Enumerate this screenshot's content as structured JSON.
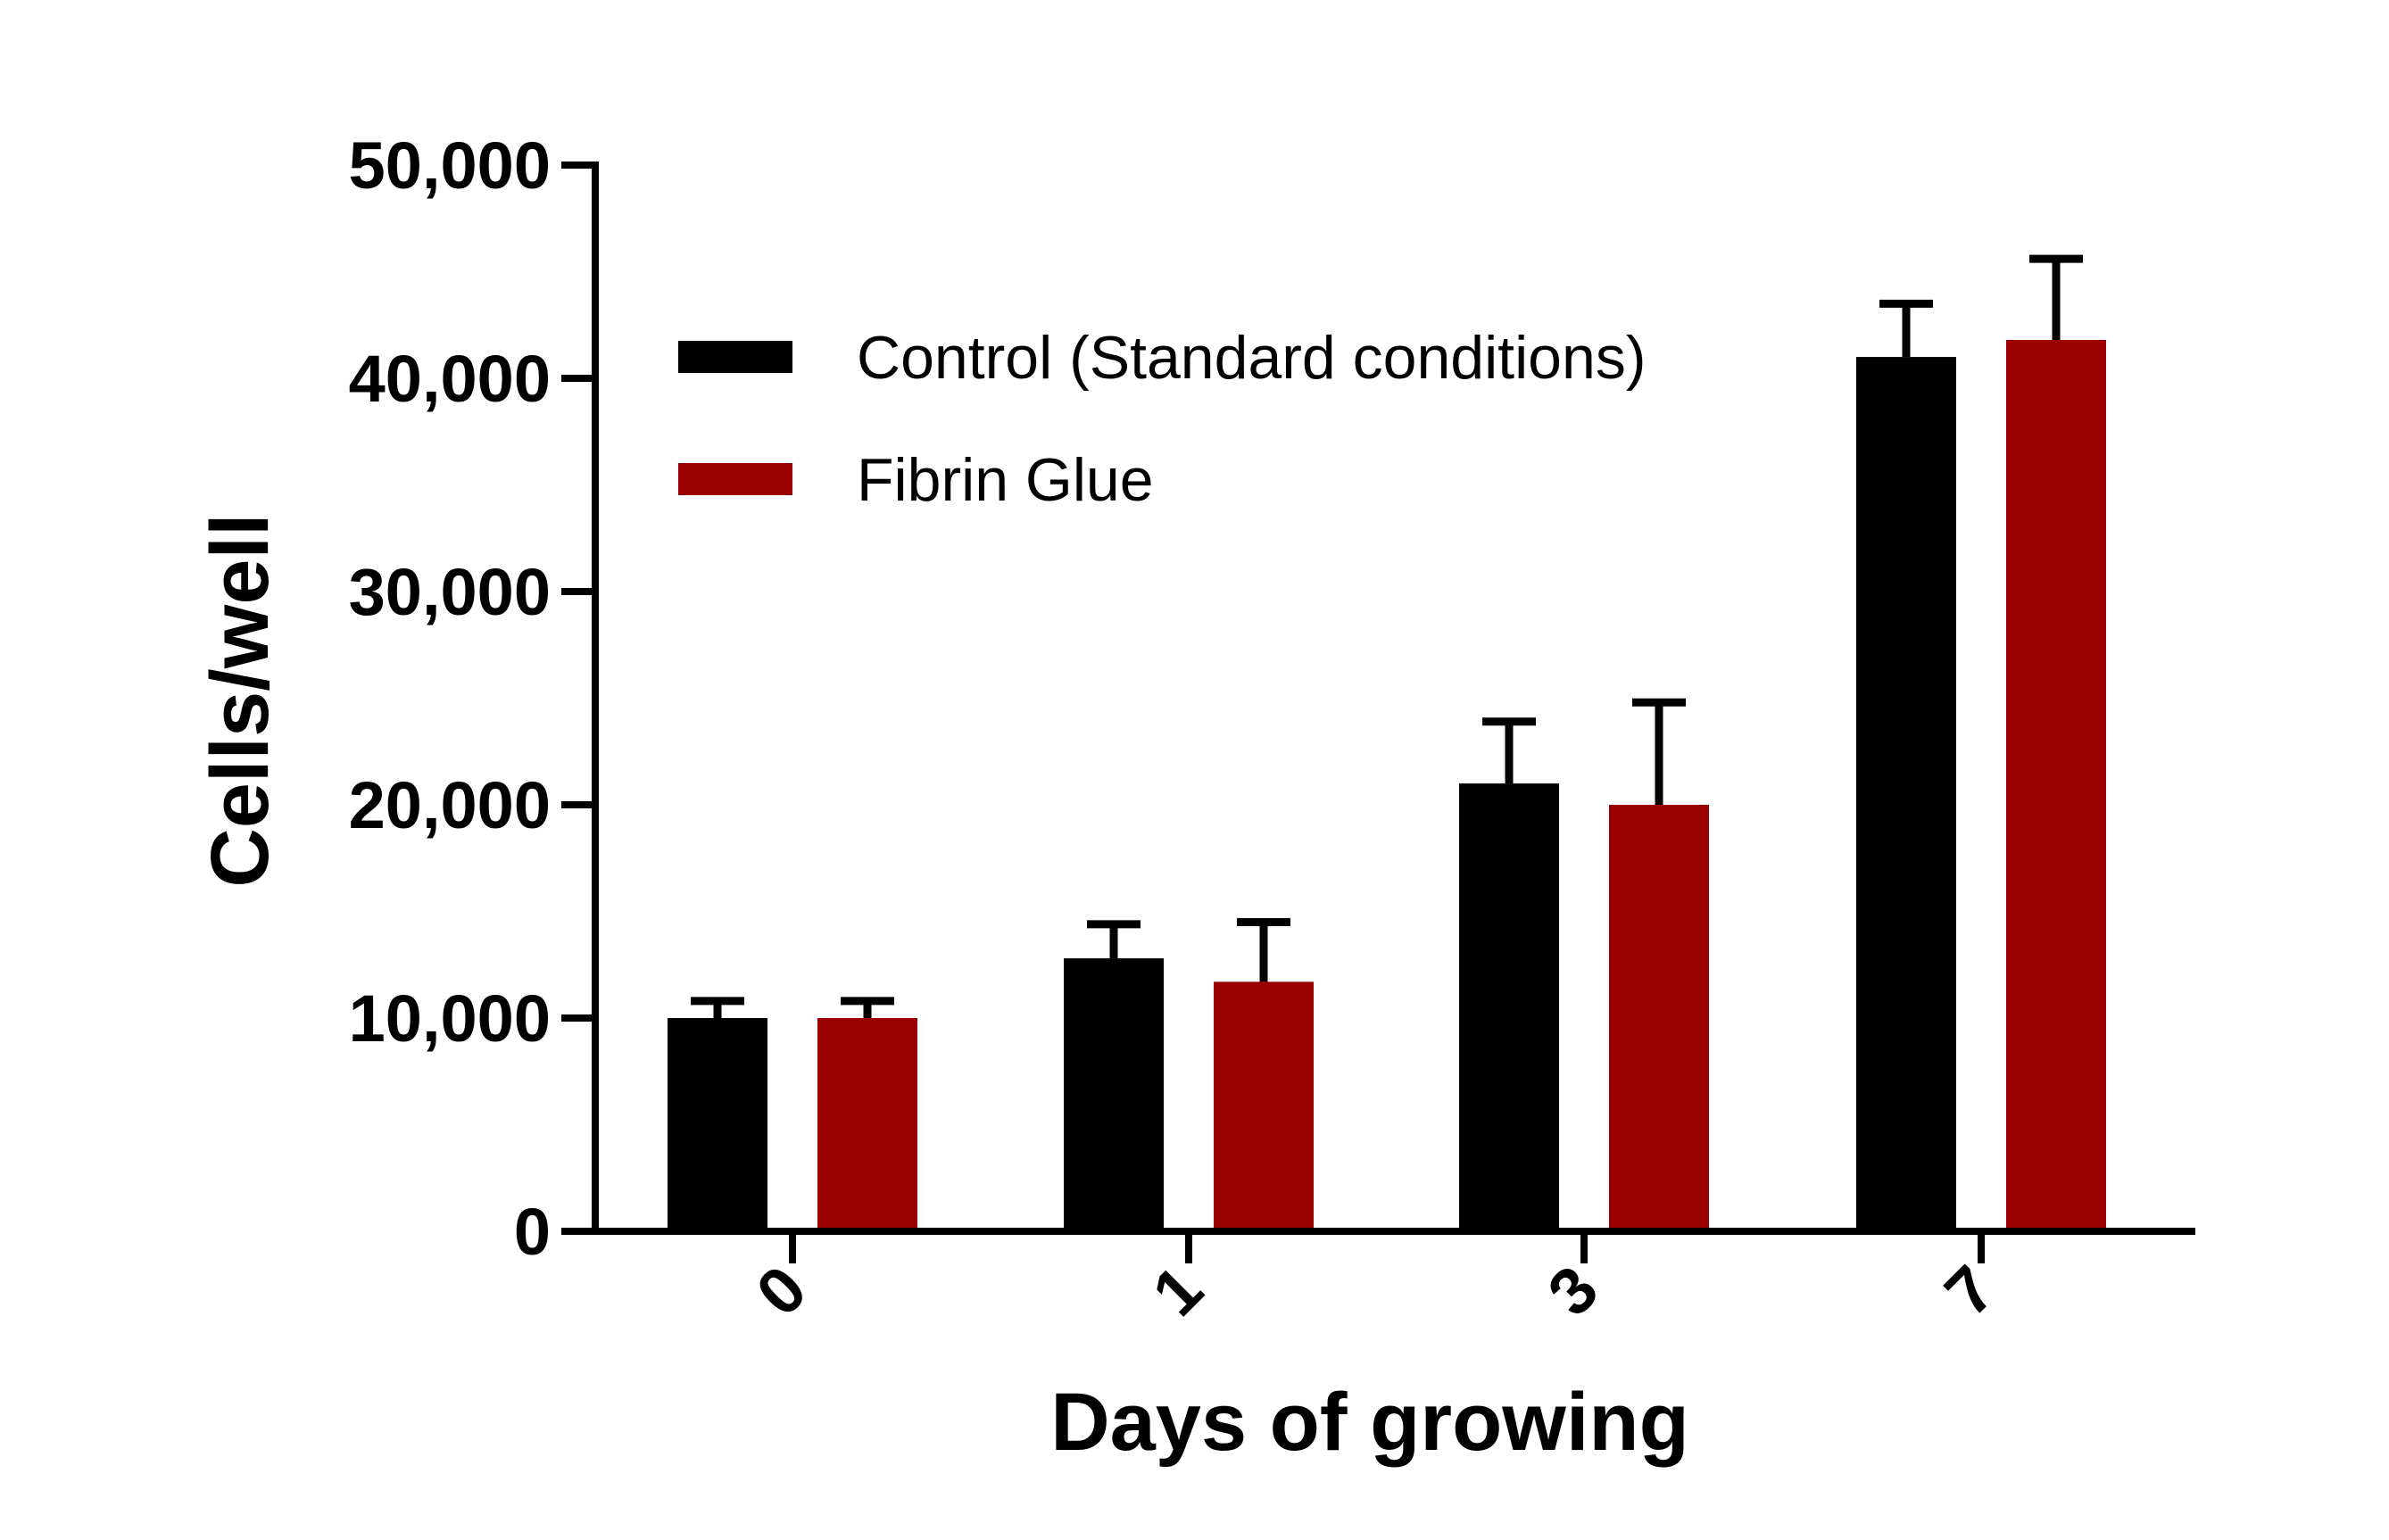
{
  "chart_data": {
    "type": "bar",
    "title": "",
    "xlabel": "Days of growing",
    "ylabel": "Cells/well",
    "categories": [
      "0",
      "1",
      "3",
      "7"
    ],
    "ylim": [
      0,
      50000
    ],
    "yticks": [
      0,
      10000,
      20000,
      30000,
      40000,
      50000
    ],
    "ytick_labels": [
      "0",
      "10,000",
      "20,000",
      "30,000",
      "40,000",
      "50,000"
    ],
    "grid": false,
    "legend_position": "top-left",
    "series": [
      {
        "name": "Control (Standard conditions)",
        "color": "#000000",
        "values": [
          10000,
          12800,
          21000,
          41000
        ],
        "error_upper": [
          800,
          1600,
          2900,
          2500
        ]
      },
      {
        "name": "Fibrin Glue",
        "color": "#9b0000",
        "values": [
          10000,
          11700,
          20000,
          41800
        ],
        "error_upper": [
          800,
          2800,
          4800,
          3800
        ]
      }
    ]
  }
}
